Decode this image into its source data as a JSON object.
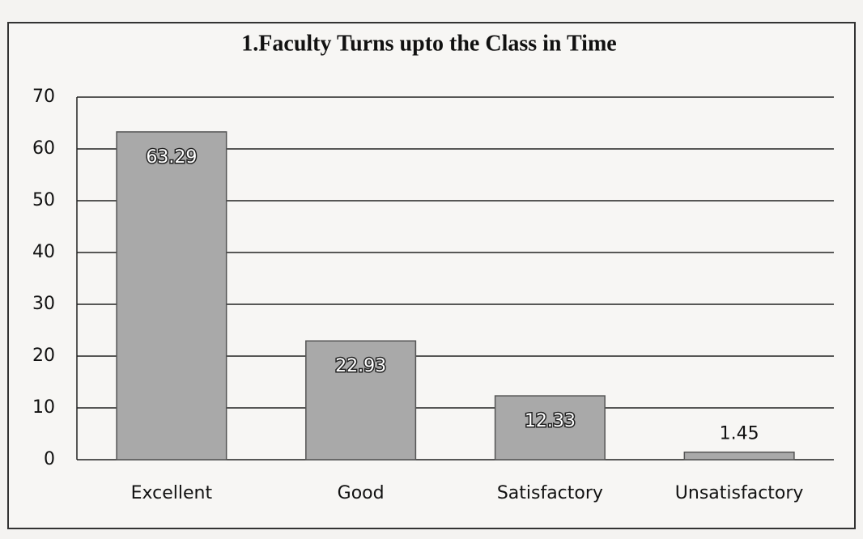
{
  "chart_data": {
    "type": "bar",
    "title": "1.Faculty Turns upto the Class in Time",
    "categories": [
      "Excellent",
      "Good",
      "Satisfactory",
      "Unsatisfactory"
    ],
    "values": [
      63.29,
      22.93,
      12.33,
      1.45
    ],
    "color": "#a9a9a9",
    "ylim": [
      0,
      70
    ],
    "yticks": [
      0,
      10,
      20,
      30,
      40,
      50,
      60,
      70
    ],
    "grid": true
  }
}
